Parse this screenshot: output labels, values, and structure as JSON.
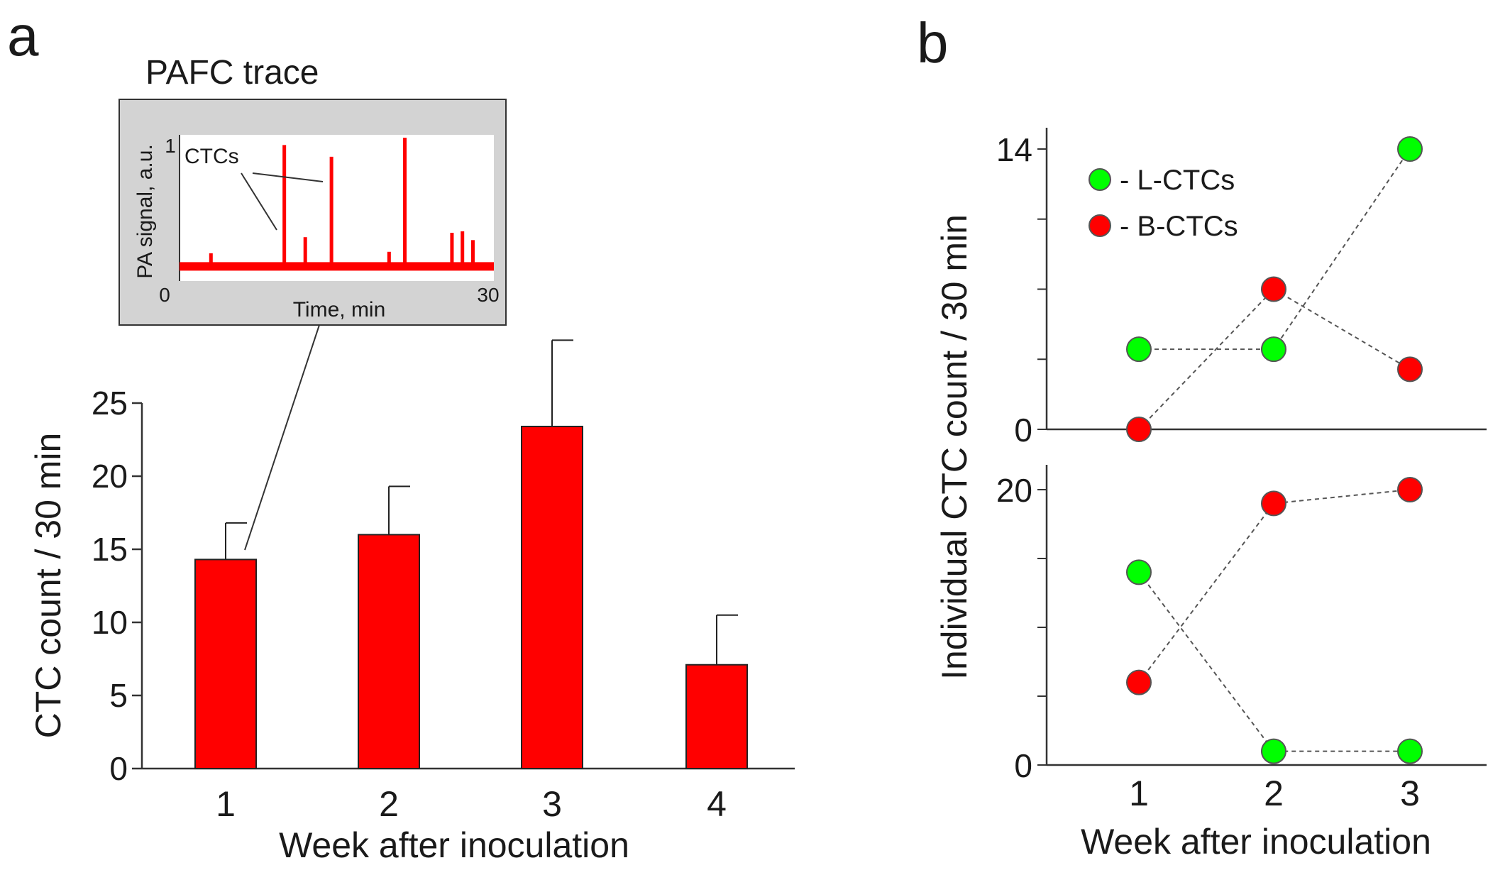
{
  "panels": {
    "a": "a",
    "b": "b"
  },
  "chart_data": [
    {
      "id": "panel-a",
      "type": "bar",
      "title": "",
      "xlabel": "Week after inoculation",
      "ylabel": "CTC count / 30 min",
      "categories": [
        "1",
        "2",
        "3",
        "4"
      ],
      "values": [
        14.3,
        16.0,
        23.4,
        7.1
      ],
      "errors": [
        2.5,
        3.3,
        5.9,
        3.4
      ],
      "ylim": [
        0,
        25
      ],
      "yticks": [
        "0",
        "5",
        "10",
        "15",
        "20",
        "25"
      ],
      "color": "#ff0000",
      "grid": false
    },
    {
      "id": "panel-a-inset",
      "type": "line",
      "title": "PAFC trace",
      "xlabel": "Time, min",
      "ylabel": "PA signal, a.u.",
      "xlim": [
        0,
        30
      ],
      "ylim": [
        0,
        1
      ],
      "xticks": [
        "0",
        "30"
      ],
      "yticks": [
        "1"
      ],
      "annotation": "CTCs",
      "baseline": 0.1,
      "peaks": [
        {
          "x": 3,
          "y": 0.19
        },
        {
          "x": 10,
          "y": 0.93
        },
        {
          "x": 12,
          "y": 0.3
        },
        {
          "x": 14.5,
          "y": 0.85
        },
        {
          "x": 20,
          "y": 0.2
        },
        {
          "x": 21.5,
          "y": 0.98
        },
        {
          "x": 26,
          "y": 0.33
        },
        {
          "x": 27,
          "y": 0.34
        },
        {
          "x": 28,
          "y": 0.28
        }
      ],
      "color": "#ff0000"
    },
    {
      "id": "panel-b-top",
      "type": "scatter",
      "ylabel": "Individual CTC count / 30 min",
      "x": [
        1,
        2,
        3
      ],
      "ylim": [
        0,
        14
      ],
      "yticks": [
        "14",
        "0"
      ],
      "series": [
        {
          "name": "- L-CTCs",
          "color": "#00ff00",
          "values": [
            4,
            4,
            14
          ]
        },
        {
          "name": "- B-CTCs",
          "color": "#ff0000",
          "values": [
            0,
            7,
            3
          ]
        }
      ],
      "legend": "top-left"
    },
    {
      "id": "panel-b-bottom",
      "type": "scatter",
      "xlabel": "Week after inoculation",
      "x": [
        1,
        2,
        3
      ],
      "xticks": [
        "1",
        "2",
        "3"
      ],
      "ylim": [
        0,
        20
      ],
      "yticks": [
        "20",
        "0"
      ],
      "series": [
        {
          "name": "L-CTCs",
          "color": "#00ff00",
          "values": [
            14,
            1,
            1
          ]
        },
        {
          "name": "B-CTCs",
          "color": "#ff0000",
          "values": [
            6,
            19,
            20
          ]
        }
      ]
    }
  ]
}
